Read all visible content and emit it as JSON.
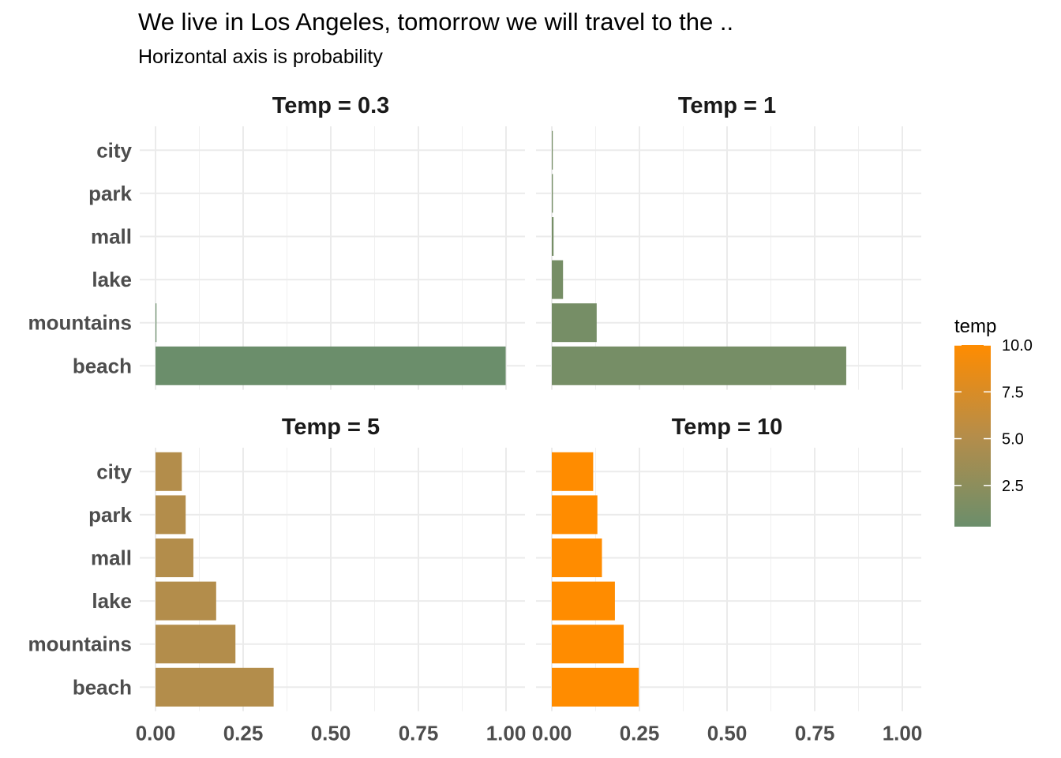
{
  "chart_data": {
    "type": "bar",
    "orientation": "horizontal",
    "title": "We live in Los Angeles, tomorrow we will travel to the ..",
    "subtitle": "Horizontal axis is probability",
    "categories": [
      "beach",
      "mountains",
      "lake",
      "mall",
      "park",
      "city"
    ],
    "xlim": [
      0,
      1
    ],
    "x_ticks": [
      "0.00",
      "0.25",
      "0.50",
      "0.75",
      "1.00"
    ],
    "x_tick_values": [
      0,
      0.25,
      0.5,
      0.75,
      1
    ],
    "grid": true,
    "panels": [
      {
        "label": "Temp = 0.3",
        "temp": 0.3,
        "values": [
          0.999,
          0.002,
          0.0,
          0.0,
          0.0,
          0.0
        ]
      },
      {
        "label": "Temp = 1",
        "temp": 1,
        "values": [
          0.84,
          0.128,
          0.032,
          0.005,
          0.003,
          0.002
        ]
      },
      {
        "label": "Temp = 5",
        "temp": 5,
        "values": [
          0.337,
          0.228,
          0.173,
          0.108,
          0.086,
          0.075
        ]
      },
      {
        "label": "Temp = 10",
        "temp": 10,
        "values": [
          0.248,
          0.205,
          0.18,
          0.143,
          0.13,
          0.118
        ]
      }
    ],
    "legend": {
      "title": "temp",
      "position": "right",
      "ticks": [
        "10.0",
        "7.5",
        "5.0",
        "2.5"
      ],
      "tick_values": [
        10,
        7.5,
        5,
        2.5
      ],
      "range": [
        0.3,
        10
      ],
      "colors": {
        "low": "#6b8e6b",
        "mid": "#b58d4a",
        "high": "#ff8c00"
      }
    }
  }
}
